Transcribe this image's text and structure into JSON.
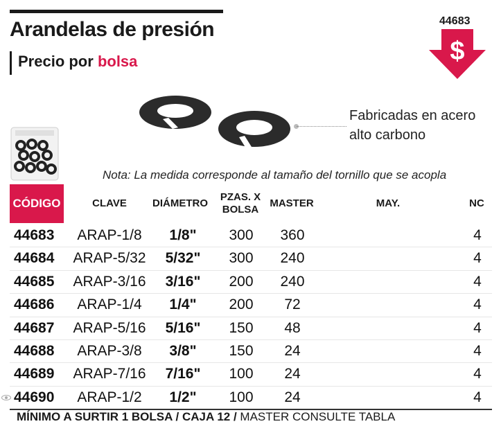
{
  "header": {
    "title": "Arandelas de presión",
    "subtitle_prefix": "Precio por",
    "subtitle_accent": "bolsa",
    "code_badge": "44683",
    "price_icon": "dollar-down-arrow-icon",
    "accent_color": "#d9184b"
  },
  "product": {
    "material_line1": "Fabricadas en acero",
    "material_line2": "alto carbono",
    "note": "Nota: La medida corresponde al tamaño del tornillo que se acopla"
  },
  "table": {
    "headers": {
      "codigo": "CÓDIGO",
      "clave": "CLAVE",
      "diametro": "DIÁMETRO",
      "pzas_line1": "PZAS. X",
      "pzas_line2": "BOLSA",
      "master": "MASTER",
      "may": "MAY.",
      "nc": "NC"
    },
    "rows": [
      {
        "codigo": "44683",
        "clave": "ARAP-1/8",
        "diametro": "1/8\"",
        "pzas": "300",
        "master": "360",
        "may": "",
        "nc": "4"
      },
      {
        "codigo": "44684",
        "clave": "ARAP-5/32",
        "diametro": "5/32\"",
        "pzas": "300",
        "master": "240",
        "may": "",
        "nc": "4"
      },
      {
        "codigo": "44685",
        "clave": "ARAP-3/16",
        "diametro": "3/16\"",
        "pzas": "200",
        "master": "240",
        "may": "",
        "nc": "4"
      },
      {
        "codigo": "44686",
        "clave": "ARAP-1/4",
        "diametro": "1/4\"",
        "pzas": "200",
        "master": "72",
        "may": "",
        "nc": "4"
      },
      {
        "codigo": "44687",
        "clave": "ARAP-5/16",
        "diametro": "5/16\"",
        "pzas": "150",
        "master": "48",
        "may": "",
        "nc": "4"
      },
      {
        "codigo": "44688",
        "clave": "ARAP-3/8",
        "diametro": "3/8\"",
        "pzas": "150",
        "master": "24",
        "may": "",
        "nc": "4"
      },
      {
        "codigo": "44689",
        "clave": "ARAP-7/16",
        "diametro": "7/16\"",
        "pzas": "100",
        "master": "24",
        "may": "",
        "nc": "4"
      },
      {
        "codigo": "44690",
        "clave": "ARAP-1/2",
        "diametro": "1/2\"",
        "pzas": "100",
        "master": "24",
        "may": "",
        "nc": "4"
      }
    ]
  },
  "footer": {
    "bold_part": "MÍNIMO A SURTIR 1 BOLSA / CAJA 12 /",
    "regular_part": " MASTER CONSULTE TABLA"
  }
}
